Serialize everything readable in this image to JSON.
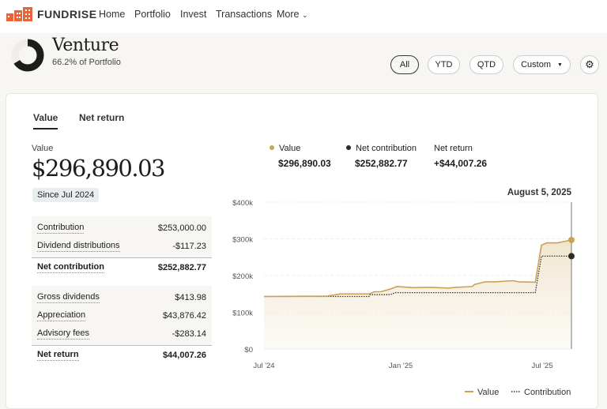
{
  "nav": {
    "brand": "FUNDRISE",
    "items": [
      "Home",
      "Portfolio",
      "Invest",
      "Transactions",
      "More"
    ]
  },
  "header": {
    "title": "Venture",
    "subtitle": "66.2% of Portfolio",
    "portfolio_share": 0.662
  },
  "filters": {
    "all": "All",
    "ytd": "YTD",
    "qtd": "QTD",
    "custom": "Custom",
    "active": "All"
  },
  "tabs": [
    "Value",
    "Net return"
  ],
  "summary": {
    "value_label": "Value",
    "value": "$296,890.03",
    "since": "Since Jul 2024",
    "contribution_rows": [
      {
        "label": "Contribution",
        "value": "$253,000.00"
      },
      {
        "label": "Dividend distributions",
        "value": "-$117.23"
      }
    ],
    "net_contribution": {
      "label": "Net contribution",
      "value": "$252,882.77"
    },
    "return_rows": [
      {
        "label": "Gross dividends",
        "value": "$413.98"
      },
      {
        "label": "Appreciation",
        "value": "$43,876.42"
      },
      {
        "label": "Advisory fees",
        "value": "-$283.14"
      }
    ],
    "net_return": {
      "label": "Net return",
      "value": "$44,007.26"
    }
  },
  "chart_header": {
    "value_label": "Value",
    "value": "$296,890.03",
    "contribution_label": "Net contribution",
    "contribution": "$252,882.77",
    "return_label": "Net return",
    "return": "+$44,007.26",
    "date": "August 5, 2025"
  },
  "colors": {
    "value": "#c9a253",
    "contribution": "#2b2b2b",
    "brand": "#e8643c"
  },
  "chart_data": {
    "type": "area",
    "ylim": [
      0,
      400000
    ],
    "xlim": [
      "2024-07-01",
      "2025-08-05"
    ],
    "yticks": [
      "$0",
      "$100k",
      "$200k",
      "$300k",
      "$400k"
    ],
    "xticks": [
      {
        "label": "Jul '24",
        "date": "2024-07-01"
      },
      {
        "label": "Jan '25",
        "date": "2024-12-26"
      },
      {
        "label": "Jul '25",
        "date": "2025-06-28"
      }
    ],
    "grid": true,
    "legend": "bottom-right",
    "series": [
      {
        "name": "Value",
        "style": "solid",
        "points": [
          [
            "2024-07-01",
            143000
          ],
          [
            "2024-09-21",
            144000
          ],
          [
            "2024-10-08",
            150000
          ],
          [
            "2024-11-15",
            150000
          ],
          [
            "2024-11-22",
            156000
          ],
          [
            "2024-11-30",
            156000
          ],
          [
            "2024-12-12",
            163000
          ],
          [
            "2024-12-21",
            170000
          ],
          [
            "2025-01-12",
            167000
          ],
          [
            "2025-02-02",
            168000
          ],
          [
            "2025-02-26",
            166000
          ],
          [
            "2025-03-08",
            168000
          ],
          [
            "2025-03-29",
            170000
          ],
          [
            "2025-04-01",
            176000
          ],
          [
            "2025-04-15",
            183000
          ],
          [
            "2025-04-28",
            183000
          ],
          [
            "2025-05-21",
            186000
          ],
          [
            "2025-05-29",
            183000
          ],
          [
            "2025-06-19",
            182000
          ],
          [
            "2025-06-27",
            283000
          ],
          [
            "2025-07-04",
            289000
          ],
          [
            "2025-07-18",
            289000
          ],
          [
            "2025-08-05",
            296890
          ]
        ]
      },
      {
        "name": "Contribution",
        "style": "dotted",
        "points": [
          [
            "2024-07-01",
            143000
          ],
          [
            "2024-11-15",
            143000
          ],
          [
            "2024-11-16",
            148000
          ],
          [
            "2024-12-12",
            148000
          ],
          [
            "2024-12-19",
            153500
          ],
          [
            "2025-06-19",
            153500
          ],
          [
            "2025-06-27",
            252883
          ],
          [
            "2025-08-05",
            252883
          ]
        ]
      }
    ]
  }
}
